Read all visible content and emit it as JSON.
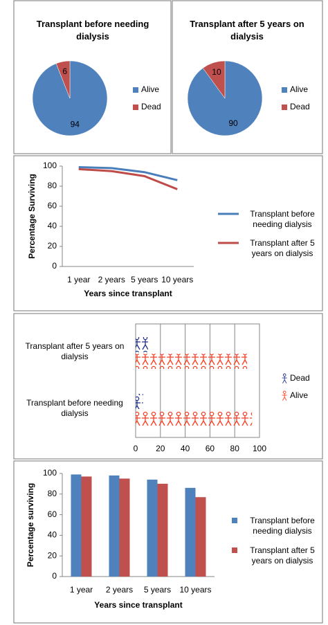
{
  "chart_data": [
    {
      "type": "pie",
      "title": "Transplant before needing dialysis",
      "categories": [
        "Alive",
        "Dead"
      ],
      "values": [
        94,
        6
      ],
      "colors": [
        "#4f81bd",
        "#c0504d"
      ],
      "legend": "right"
    },
    {
      "type": "pie",
      "title": "Transplant after 5 years on dialysis",
      "categories": [
        "Alive",
        "Dead"
      ],
      "values": [
        90,
        10
      ],
      "colors": [
        "#4f81bd",
        "#c0504d"
      ],
      "legend": "right"
    },
    {
      "type": "line",
      "x_label": "Years since transplant",
      "y_label": "Percentage Surviving",
      "categories": [
        "1 year",
        "2 years",
        "5 years",
        "10 years"
      ],
      "series": [
        {
          "name": "Transplant before needing dialysis",
          "color": "#4a7ebb",
          "values": [
            99,
            98,
            94,
            86
          ]
        },
        {
          "name": "Transplant after 5 years on dialysis",
          "color": "#be4b48",
          "values": [
            97,
            95,
            90,
            77
          ]
        }
      ],
      "ylim": [
        0,
        100
      ],
      "yticks": [
        0,
        20,
        40,
        60,
        80,
        100
      ],
      "grid": false,
      "legend": "right"
    },
    {
      "type": "pictograph",
      "categories": [
        "Transplant after 5 years on dialysis",
        "Transplant before needing dialysis"
      ],
      "series": [
        {
          "name": "Dead",
          "color": "#1f2f8f",
          "values": [
            10,
            6
          ]
        },
        {
          "name": "Alive",
          "color": "#ff3b1f",
          "values": [
            90,
            94
          ]
        }
      ],
      "xlim": [
        0,
        100
      ],
      "xticks": [
        0,
        20,
        40,
        60,
        80,
        100
      ],
      "grid": true,
      "legend": "right"
    },
    {
      "type": "bar",
      "x_label": "Years since transplant",
      "y_label": "Percentage surviving",
      "categories": [
        "1 year",
        "2 years",
        "5 years",
        "10 years"
      ],
      "series": [
        {
          "name": "Transplant before needing dialysis",
          "color": "#4f81bd",
          "values": [
            99,
            98,
            94,
            86
          ]
        },
        {
          "name": "Transplant after 5 years on dialysis",
          "color": "#c0504d",
          "values": [
            97,
            95,
            90,
            77
          ]
        }
      ],
      "ylim": [
        0,
        100
      ],
      "yticks": [
        0,
        20,
        40,
        60,
        80,
        100
      ],
      "grid": false,
      "legend": "right"
    }
  ]
}
